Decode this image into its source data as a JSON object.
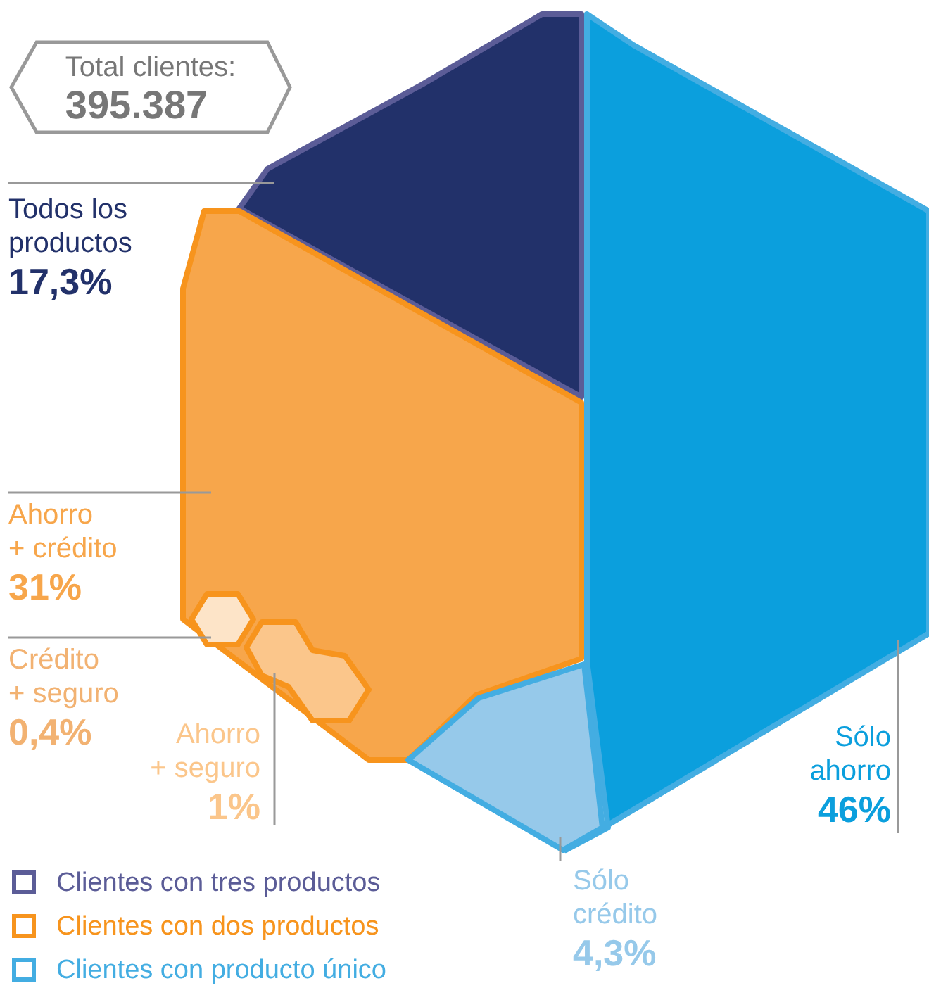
{
  "chart_data": {
    "type": "other",
    "title": "Total clientes:",
    "subtitle": "395.387",
    "categories": [
      "Todos los productos",
      "Ahorro + crédito",
      "Crédito + seguro",
      "Ahorro + seguro",
      "Sólo ahorro",
      "Sólo crédito"
    ],
    "series": [
      {
        "name": "Clientes con tres productos",
        "color": "#5b5c97",
        "values": [
          17.3,
          null,
          null,
          null,
          null,
          null
        ],
        "value_labels": [
          "17,3%",
          null,
          null,
          null,
          null,
          null
        ],
        "colors": [
          "#22316a",
          null,
          null,
          null,
          null,
          null
        ]
      },
      {
        "name": "Clientes con dos productos",
        "color": "#f7941d",
        "values": [
          null,
          31,
          0.4,
          1,
          null,
          null
        ],
        "value_labels": [
          null,
          "31%",
          "0,4%",
          "1%",
          null,
          null
        ],
        "colors": [
          null,
          "#f7a64b",
          "#fde4c8",
          "#fbc68b",
          null,
          null
        ]
      },
      {
        "name": "Clientes con producto único",
        "color": "#43ade2",
        "values": [
          null,
          null,
          null,
          null,
          46,
          4.3
        ],
        "value_labels": [
          null,
          null,
          null,
          null,
          "46%",
          "4,3%"
        ],
        "colors": [
          null,
          null,
          null,
          null,
          "#0b9fdd",
          "#96c9ea"
        ]
      }
    ],
    "legend": "bottom left"
  }
}
